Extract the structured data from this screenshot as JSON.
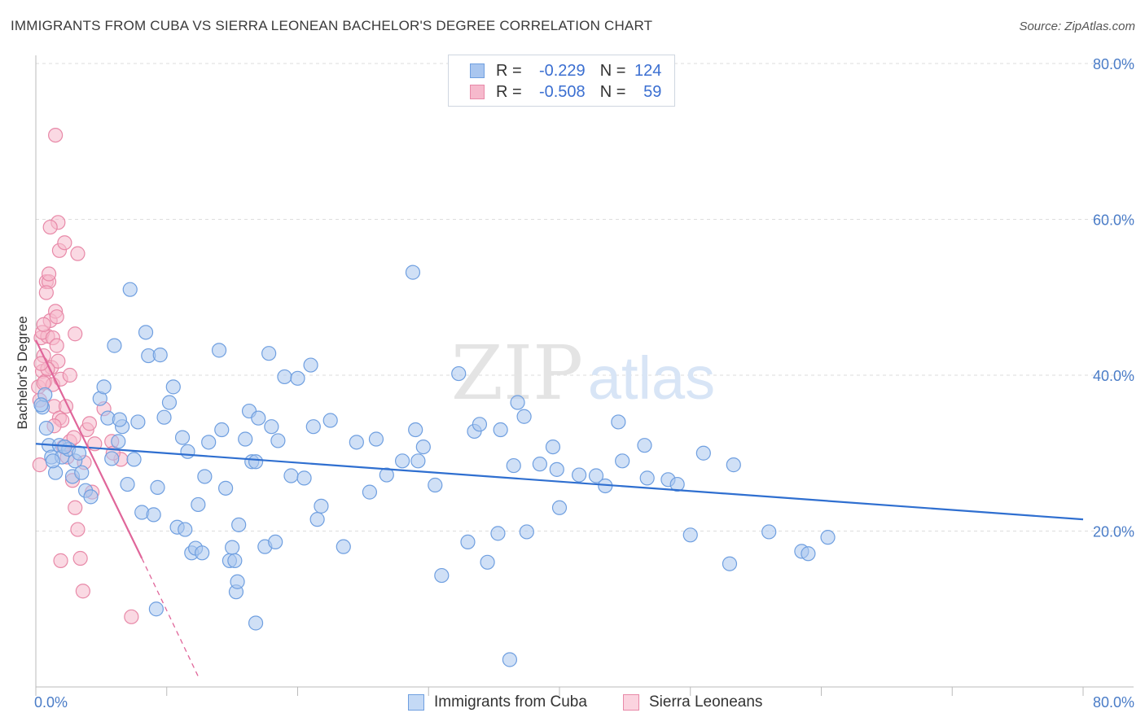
{
  "header": {
    "title": "IMMIGRANTS FROM CUBA VS SIERRA LEONEAN BACHELOR'S DEGREE CORRELATION CHART",
    "source": "Source: ZipAtlas.com"
  },
  "watermark": {
    "zip": "ZIP",
    "atlas": "atlas"
  },
  "legend": {
    "r_label": "R =",
    "n_label": "N =",
    "series": [
      {
        "r": "-0.229",
        "n": "124"
      },
      {
        "r": "-0.508",
        "n": "59"
      }
    ]
  },
  "colors": {
    "blue_fill": "#a9c6ef",
    "blue_stroke": "#6f9fe0",
    "blue_line": "#2f6fd0",
    "pink_fill": "#f6b9cc",
    "pink_stroke": "#e889a8",
    "pink_line": "#e0669a",
    "axis_text": "#4a7cc7"
  },
  "chart_data": {
    "type": "scatter",
    "title": "IMMIGRANTS FROM CUBA VS SIERRA LEONEAN BACHELOR'S DEGREE CORRELATION CHART",
    "xlabel": "",
    "ylabel": "Bachelor's Degree",
    "xlim": [
      0,
      80
    ],
    "ylim": [
      0,
      80
    ],
    "x_tick_labels": [
      "0.0%",
      "80.0%"
    ],
    "y_ticks": [
      20,
      40,
      60,
      80
    ],
    "y_tick_labels": [
      "20.0%",
      "40.0%",
      "60.0%",
      "80.0%"
    ],
    "grid": true,
    "legend_position": "top-center",
    "series": [
      {
        "name": "Immigrants from Cuba",
        "r": -0.229,
        "n": 124,
        "trend": {
          "x": [
            0,
            80
          ],
          "y": [
            31.2,
            21.5
          ],
          "style": "solid"
        },
        "points": [
          [
            0.5,
            35.9
          ],
          [
            0.8,
            33.2
          ],
          [
            1,
            31
          ],
          [
            1.2,
            29.5
          ],
          [
            1.5,
            27.5
          ],
          [
            1.8,
            31
          ],
          [
            2,
            29.5
          ],
          [
            2.5,
            30.5
          ],
          [
            2.8,
            27
          ],
          [
            3,
            29
          ],
          [
            3.3,
            30
          ],
          [
            3.5,
            27.5
          ],
          [
            3.8,
            25.2
          ],
          [
            4.2,
            24.4
          ],
          [
            4.9,
            37
          ],
          [
            5.2,
            38.5
          ],
          [
            5.5,
            34.5
          ],
          [
            6,
            43.8
          ],
          [
            6.3,
            31.5
          ],
          [
            6.6,
            33.4
          ],
          [
            7,
            26
          ],
          [
            7.2,
            51
          ],
          [
            7.5,
            29.2
          ],
          [
            7.8,
            34
          ],
          [
            8.1,
            22.4
          ],
          [
            8.4,
            45.5
          ],
          [
            8.6,
            42.5
          ],
          [
            9,
            22.1
          ],
          [
            9.3,
            25.6
          ],
          [
            9.5,
            42.6
          ],
          [
            9.8,
            34.6
          ],
          [
            10.2,
            36.5
          ],
          [
            10.5,
            38.5
          ],
          [
            10.8,
            20.5
          ],
          [
            11.2,
            32
          ],
          [
            11.4,
            20.2
          ],
          [
            11.6,
            30.2
          ],
          [
            11.9,
            17.2
          ],
          [
            12.2,
            17.8
          ],
          [
            12.4,
            23.4
          ],
          [
            12.7,
            17.2
          ],
          [
            12.9,
            27
          ],
          [
            13.2,
            31.4
          ],
          [
            14,
            43.2
          ],
          [
            14.2,
            33
          ],
          [
            14.5,
            25.5
          ],
          [
            14.8,
            16.2
          ],
          [
            15,
            17.9
          ],
          [
            15.2,
            16.2
          ],
          [
            15.5,
            20.8
          ],
          [
            16,
            31.8
          ],
          [
            16.3,
            35.4
          ],
          [
            16.5,
            28.9
          ],
          [
            16.8,
            28.9
          ],
          [
            17,
            34.5
          ],
          [
            17.5,
            18
          ],
          [
            17.8,
            42.8
          ],
          [
            18,
            33.4
          ],
          [
            18.3,
            18.6
          ],
          [
            18.5,
            31.6
          ],
          [
            19,
            39.8
          ],
          [
            19.5,
            27.1
          ],
          [
            20,
            39.6
          ],
          [
            20.5,
            26.8
          ],
          [
            21,
            41.3
          ],
          [
            21.2,
            33.4
          ],
          [
            21.5,
            21.5
          ],
          [
            21.8,
            23.2
          ],
          [
            22.5,
            34.2
          ],
          [
            23.5,
            18
          ],
          [
            24.5,
            31.4
          ],
          [
            25.5,
            25
          ],
          [
            26,
            31.8
          ],
          [
            26.8,
            27.2
          ],
          [
            28,
            29
          ],
          [
            29,
            33
          ],
          [
            29.2,
            29
          ],
          [
            29.6,
            30.8
          ],
          [
            30.5,
            25.9
          ],
          [
            31,
            14.3
          ],
          [
            32.3,
            40.2
          ],
          [
            33,
            18.6
          ],
          [
            33.5,
            32.8
          ],
          [
            33.9,
            33.7
          ],
          [
            34.5,
            16
          ],
          [
            35.3,
            19.7
          ],
          [
            35.5,
            33
          ],
          [
            36.5,
            28.4
          ],
          [
            36.8,
            36.5
          ],
          [
            37.3,
            34.7
          ],
          [
            37.5,
            19.9
          ],
          [
            38.5,
            28.6
          ],
          [
            39.5,
            30.8
          ],
          [
            39.8,
            27.9
          ],
          [
            40,
            23
          ],
          [
            41.5,
            27.2
          ],
          [
            42.8,
            27.1
          ],
          [
            43.5,
            25.8
          ],
          [
            44.5,
            34
          ],
          [
            44.8,
            29
          ],
          [
            46.5,
            31
          ],
          [
            46.7,
            26.8
          ],
          [
            48.3,
            26.6
          ],
          [
            49,
            26
          ],
          [
            50,
            19.5
          ],
          [
            51,
            30
          ],
          [
            53,
            15.8
          ],
          [
            53.3,
            28.5
          ],
          [
            56,
            19.9
          ],
          [
            58.5,
            17.4
          ],
          [
            59,
            17.1
          ],
          [
            60.5,
            19.2
          ],
          [
            1.3,
            29
          ],
          [
            0.7,
            37.5
          ],
          [
            2.2,
            30.8
          ],
          [
            6.4,
            34.3
          ],
          [
            0.4,
            36.2
          ],
          [
            5.8,
            29.3
          ],
          [
            9.2,
            10
          ],
          [
            15.3,
            12.2
          ],
          [
            15.4,
            13.5
          ],
          [
            16.8,
            8.2
          ],
          [
            28.8,
            53.2
          ],
          [
            36.2,
            3.5
          ]
        ]
      },
      {
        "name": "Sierra Leoneans",
        "r": -0.508,
        "n": 59,
        "trend": {
          "x": [
            0,
            8.1
          ],
          "y": [
            44.5,
            16.5
          ],
          "style": "solid",
          "extension": {
            "x": [
              8.1,
              12.5
            ],
            "y": [
              16.5,
              1
            ],
            "style": "dashed"
          }
        },
        "points": [
          [
            0.2,
            38.5
          ],
          [
            0.3,
            36.8
          ],
          [
            0.4,
            44.8
          ],
          [
            0.5,
            40.5
          ],
          [
            0.6,
            42.5
          ],
          [
            0.7,
            39.2
          ],
          [
            0.8,
            52
          ],
          [
            0.9,
            45
          ],
          [
            1,
            52
          ],
          [
            1.1,
            47
          ],
          [
            1.2,
            41
          ],
          [
            1.3,
            38.8
          ],
          [
            1.4,
            36
          ],
          [
            1.5,
            48.2
          ],
          [
            1.6,
            47.5
          ],
          [
            1.7,
            41.8
          ],
          [
            1.8,
            34.5
          ],
          [
            1.9,
            39.5
          ],
          [
            2,
            34.2
          ],
          [
            2.1,
            30.8
          ],
          [
            2.3,
            36
          ],
          [
            2.4,
            29.5
          ],
          [
            2.6,
            31.5
          ],
          [
            2.8,
            26.5
          ],
          [
            3,
            23
          ],
          [
            3.2,
            20.2
          ],
          [
            3.4,
            16.5
          ],
          [
            3.6,
            12.3
          ],
          [
            4.5,
            31.2
          ],
          [
            5.8,
            31.5
          ],
          [
            6.5,
            29.2
          ],
          [
            7.3,
            9
          ],
          [
            0.3,
            28.5
          ],
          [
            0.5,
            45.5
          ],
          [
            0.6,
            46.5
          ],
          [
            0.8,
            50.6
          ],
          [
            1,
            53
          ],
          [
            1.5,
            70.8
          ],
          [
            1.7,
            59.6
          ],
          [
            1.8,
            56
          ],
          [
            2.2,
            57
          ],
          [
            2.6,
            40
          ],
          [
            3,
            45.3
          ],
          [
            3.2,
            55.6
          ],
          [
            3.9,
            33
          ],
          [
            4.1,
            33.8
          ],
          [
            4.3,
            25
          ],
          [
            1.1,
            59
          ],
          [
            0.9,
            40.8
          ],
          [
            1.3,
            44.8
          ],
          [
            1.6,
            43.8
          ],
          [
            0.4,
            41.5
          ],
          [
            0.6,
            39
          ],
          [
            2.9,
            32
          ],
          [
            3.7,
            28.8
          ],
          [
            5.2,
            35.7
          ],
          [
            5.9,
            30
          ],
          [
            1.4,
            33.5
          ],
          [
            1.9,
            16.2
          ]
        ]
      }
    ]
  }
}
